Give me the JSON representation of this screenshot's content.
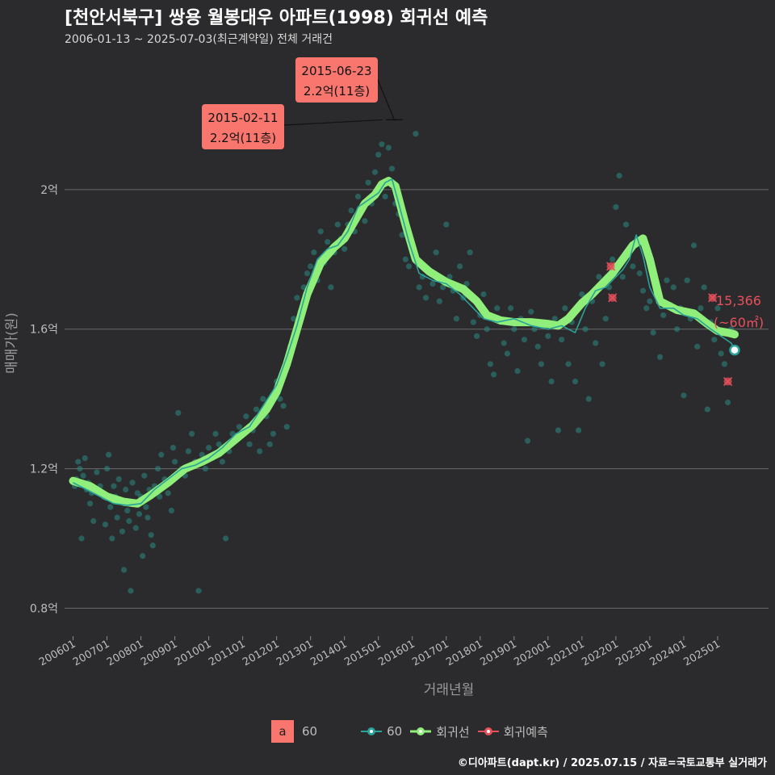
{
  "title": "[천안서북구] 쌍용 월봉대우 아파트(1998) 회귀선 예측",
  "subtitle": "2006-01-13 ~ 2025-07-03(최근계약일) 전체 거래건",
  "caption": "©디아파트(dapt.kr) / 2025.07.15 / 자료=국토교통부 실거래가",
  "colors": {
    "background": "#2b2b2d",
    "grid": "#6a6a6a",
    "points": "#2a8a83",
    "area_line": "#2aa39a",
    "regression": "#90ee7a",
    "forecast": "#e8505b",
    "label_fill": "#f8766d"
  },
  "legend": {
    "label_key": "a",
    "label_text": "60",
    "area": "60",
    "regression": "회귀선",
    "forecast": "회귀예측"
  },
  "chart_data": {
    "type": "scatter",
    "xlabel": "거래년월",
    "ylabel": "매매가(원)",
    "xlim": [
      2005.75,
      2026.5
    ],
    "ylim": [
      0.72,
      2.4
    ],
    "x_ticks": [
      "200601",
      "200701",
      "200801",
      "200901",
      "201001",
      "201101",
      "201201",
      "201301",
      "201401",
      "201501",
      "201601",
      "201701",
      "201801",
      "201901",
      "202001",
      "202101",
      "202201",
      "202301",
      "202401",
      "202501"
    ],
    "y_ticks": [
      {
        "value": 0.8,
        "label": "0.8억"
      },
      {
        "value": 1.2,
        "label": "1.2억"
      },
      {
        "value": 1.6,
        "label": "1.6억"
      },
      {
        "value": 2.0,
        "label": "2억"
      }
    ],
    "regression": {
      "name": "회귀선",
      "x": [
        2006.0,
        2006.5,
        2007.0,
        2007.5,
        2007.9,
        2008.3,
        2008.8,
        2009.3,
        2009.8,
        2010.3,
        2010.8,
        2011.3,
        2011.7,
        2012.0,
        2012.3,
        2012.6,
        2012.9,
        2013.3,
        2013.7,
        2014.0,
        2014.3,
        2014.6,
        2014.9,
        2015.1,
        2015.3,
        2015.5,
        2015.8,
        2016.1,
        2016.5,
        2017.0,
        2017.5,
        2017.9,
        2018.2,
        2018.6,
        2019.0,
        2019.5,
        2020.0,
        2020.3,
        2020.6,
        2021.0,
        2021.3,
        2021.6,
        2021.9,
        2022.2,
        2022.5,
        2022.8,
        2023.0,
        2023.3,
        2023.8,
        2024.3,
        2024.7,
        2025.0,
        2025.3,
        2025.5
      ],
      "y": [
        1.165,
        1.15,
        1.12,
        1.105,
        1.1,
        1.125,
        1.16,
        1.2,
        1.22,
        1.245,
        1.285,
        1.325,
        1.37,
        1.42,
        1.5,
        1.6,
        1.7,
        1.79,
        1.835,
        1.86,
        1.91,
        1.96,
        1.985,
        2.015,
        2.025,
        2.01,
        1.9,
        1.8,
        1.765,
        1.735,
        1.715,
        1.68,
        1.64,
        1.625,
        1.62,
        1.62,
        1.615,
        1.61,
        1.63,
        1.675,
        1.7,
        1.73,
        1.76,
        1.8,
        1.84,
        1.86,
        1.8,
        1.68,
        1.655,
        1.645,
        1.615,
        1.595,
        1.59,
        1.585
      ]
    },
    "area_series": {
      "name": "60",
      "x": [
        2006.0,
        2006.4,
        2006.8,
        2007.2,
        2007.6,
        2008.0,
        2008.4,
        2008.8,
        2009.2,
        2009.6,
        2010.0,
        2010.4,
        2010.8,
        2011.2,
        2011.6,
        2012.0,
        2012.3,
        2012.6,
        2012.9,
        2013.2,
        2013.5,
        2013.8,
        2014.1,
        2014.4,
        2014.7,
        2015.0,
        2015.2,
        2015.4,
        2015.6,
        2015.9,
        2016.2,
        2016.6,
        2017.0,
        2017.4,
        2017.8,
        2018.1,
        2018.5,
        2019.0,
        2019.5,
        2020.0,
        2020.4,
        2020.8,
        2021.1,
        2021.4,
        2021.7,
        2022.0,
        2022.2,
        2022.4,
        2022.6,
        2022.8,
        2023.0,
        2023.3,
        2023.7,
        2024.0,
        2024.4,
        2024.8,
        2025.1,
        2025.4,
        2025.5
      ],
      "y": [
        1.16,
        1.14,
        1.12,
        1.1,
        1.095,
        1.1,
        1.14,
        1.17,
        1.2,
        1.21,
        1.23,
        1.26,
        1.3,
        1.32,
        1.38,
        1.44,
        1.52,
        1.61,
        1.72,
        1.8,
        1.83,
        1.84,
        1.88,
        1.95,
        1.97,
        1.99,
        2.02,
        2.03,
        1.96,
        1.85,
        1.76,
        1.74,
        1.73,
        1.7,
        1.66,
        1.63,
        1.62,
        1.63,
        1.61,
        1.6,
        1.61,
        1.59,
        1.66,
        1.71,
        1.72,
        1.75,
        1.77,
        1.8,
        1.87,
        1.81,
        1.72,
        1.66,
        1.66,
        1.64,
        1.63,
        1.6,
        1.58,
        1.56,
        1.54
      ]
    },
    "forecast_points": [
      {
        "x": 2021.85,
        "y": 1.78
      },
      {
        "x": 2021.9,
        "y": 1.69
      },
      {
        "x": 2024.85,
        "y": 1.69
      },
      {
        "x": 2025.3,
        "y": 1.45
      }
    ],
    "last_point": {
      "x": 2025.5,
      "y": 1.54
    },
    "end_label_value": "15,366",
    "end_label_area": "(~60㎡)",
    "annotations": [
      {
        "date": "2015-06-23",
        "price": "2.2억(11층)",
        "x": 2015.47,
        "y": 2.2
      },
      {
        "date": "2015-02-11",
        "price": "2.2억(11층)",
        "x": 2015.11,
        "y": 2.2
      }
    ],
    "points": [
      [
        2006.05,
        1.15
      ],
      [
        2006.1,
        1.17
      ],
      [
        2006.15,
        1.22
      ],
      [
        2006.2,
        1.2
      ],
      [
        2006.25,
        1.0
      ],
      [
        2006.3,
        1.18
      ],
      [
        2006.35,
        1.23
      ],
      [
        2006.4,
        1.14
      ],
      [
        2006.45,
        1.16
      ],
      [
        2006.5,
        1.1
      ],
      [
        2006.55,
        1.13
      ],
      [
        2006.6,
        1.05
      ],
      [
        2006.7,
        1.19
      ],
      [
        2006.8,
        1.15
      ],
      [
        2006.9,
        1.12
      ],
      [
        2006.95,
        1.04
      ],
      [
        2007.0,
        1.2
      ],
      [
        2007.05,
        1.24
      ],
      [
        2007.1,
        1.09
      ],
      [
        2007.15,
        1.0
      ],
      [
        2007.2,
        1.15
      ],
      [
        2007.25,
        1.12
      ],
      [
        2007.3,
        1.06
      ],
      [
        2007.35,
        1.17
      ],
      [
        2007.4,
        1.11
      ],
      [
        2007.45,
        1.02
      ],
      [
        2007.5,
        0.91
      ],
      [
        2007.55,
        1.14
      ],
      [
        2007.6,
        1.08
      ],
      [
        2007.65,
        1.05
      ],
      [
        2007.7,
        0.85
      ],
      [
        2007.75,
        1.16
      ],
      [
        2007.8,
        1.1
      ],
      [
        2007.85,
        1.03
      ],
      [
        2007.9,
        1.13
      ],
      [
        2007.95,
        1.07
      ],
      [
        2008.0,
        1.12
      ],
      [
        2008.05,
        0.95
      ],
      [
        2008.1,
        1.18
      ],
      [
        2008.15,
        1.09
      ],
      [
        2008.2,
        1.06
      ],
      [
        2008.25,
        1.14
      ],
      [
        2008.3,
        1.01
      ],
      [
        2008.35,
        0.98
      ],
      [
        2008.4,
        1.15
      ],
      [
        2008.5,
        1.2
      ],
      [
        2008.55,
        1.12
      ],
      [
        2008.6,
        1.24
      ],
      [
        2008.7,
        1.17
      ],
      [
        2008.8,
        1.13
      ],
      [
        2008.9,
        1.08
      ],
      [
        2008.95,
        1.26
      ],
      [
        2009.0,
        1.22
      ],
      [
        2009.1,
        1.36
      ],
      [
        2009.2,
        1.2
      ],
      [
        2009.3,
        1.18
      ],
      [
        2009.4,
        1.25
      ],
      [
        2009.5,
        1.3
      ],
      [
        2009.6,
        1.22
      ],
      [
        2009.7,
        0.85
      ],
      [
        2009.8,
        1.24
      ],
      [
        2009.9,
        1.2
      ],
      [
        2010.0,
        1.26
      ],
      [
        2010.1,
        1.23
      ],
      [
        2010.2,
        1.3
      ],
      [
        2010.3,
        1.27
      ],
      [
        2010.4,
        1.22
      ],
      [
        2010.5,
        1.0
      ],
      [
        2010.6,
        1.25
      ],
      [
        2010.7,
        1.3
      ],
      [
        2010.8,
        1.28
      ],
      [
        2010.9,
        1.32
      ],
      [
        2011.0,
        1.3
      ],
      [
        2011.1,
        1.35
      ],
      [
        2011.2,
        1.27
      ],
      [
        2011.3,
        1.31
      ],
      [
        2011.4,
        1.37
      ],
      [
        2011.5,
        1.25
      ],
      [
        2011.6,
        1.4
      ],
      [
        2011.7,
        1.35
      ],
      [
        2011.8,
        1.27
      ],
      [
        2011.9,
        1.3
      ],
      [
        2012.0,
        1.45
      ],
      [
        2012.1,
        1.4
      ],
      [
        2012.2,
        1.38
      ],
      [
        2012.3,
        1.32
      ],
      [
        2012.4,
        1.55
      ],
      [
        2012.5,
        1.63
      ],
      [
        2012.6,
        1.69
      ],
      [
        2012.7,
        1.65
      ],
      [
        2012.8,
        1.72
      ],
      [
        2012.9,
        1.76
      ],
      [
        2013.0,
        1.78
      ],
      [
        2013.1,
        1.82
      ],
      [
        2013.2,
        1.74
      ],
      [
        2013.3,
        1.88
      ],
      [
        2013.4,
        1.79
      ],
      [
        2013.5,
        1.85
      ],
      [
        2013.6,
        1.72
      ],
      [
        2013.7,
        1.82
      ],
      [
        2013.8,
        1.9
      ],
      [
        2013.9,
        1.86
      ],
      [
        2014.0,
        1.83
      ],
      [
        2014.1,
        1.9
      ],
      [
        2014.2,
        1.94
      ],
      [
        2014.3,
        1.88
      ],
      [
        2014.4,
        1.98
      ],
      [
        2014.5,
        1.95
      ],
      [
        2014.6,
        1.91
      ],
      [
        2014.7,
        2.02
      ],
      [
        2014.8,
        1.96
      ],
      [
        2014.9,
        2.05
      ],
      [
        2015.0,
        2.1
      ],
      [
        2015.05,
        2.0
      ],
      [
        2015.1,
        2.13
      ],
      [
        2015.2,
        1.98
      ],
      [
        2015.3,
        2.12
      ],
      [
        2015.4,
        2.06
      ],
      [
        2015.5,
        1.96
      ],
      [
        2015.6,
        1.93
      ],
      [
        2015.7,
        1.87
      ],
      [
        2015.8,
        1.8
      ],
      [
        2015.9,
        1.78
      ],
      [
        2016.0,
        1.82
      ],
      [
        2016.1,
        2.16
      ],
      [
        2016.2,
        1.72
      ],
      [
        2016.3,
        1.75
      ],
      [
        2016.4,
        1.69
      ],
      [
        2016.5,
        1.77
      ],
      [
        2016.6,
        1.73
      ],
      [
        2016.7,
        1.82
      ],
      [
        2016.8,
        1.68
      ],
      [
        2016.9,
        1.72
      ],
      [
        2017.0,
        1.9
      ],
      [
        2017.1,
        1.75
      ],
      [
        2017.2,
        1.71
      ],
      [
        2017.3,
        1.63
      ],
      [
        2017.4,
        1.78
      ],
      [
        2017.5,
        1.69
      ],
      [
        2017.6,
        1.73
      ],
      [
        2017.7,
        1.82
      ],
      [
        2017.8,
        1.62
      ],
      [
        2017.9,
        1.58
      ],
      [
        2018.0,
        1.64
      ],
      [
        2018.1,
        1.7
      ],
      [
        2018.2,
        1.6
      ],
      [
        2018.3,
        1.5
      ],
      [
        2018.4,
        1.47
      ],
      [
        2018.5,
        1.66
      ],
      [
        2018.6,
        1.62
      ],
      [
        2018.7,
        1.56
      ],
      [
        2018.8,
        1.53
      ],
      [
        2018.9,
        1.66
      ],
      [
        2019.0,
        1.6
      ],
      [
        2019.1,
        1.48
      ],
      [
        2019.2,
        1.63
      ],
      [
        2019.3,
        1.57
      ],
      [
        2019.4,
        1.28
      ],
      [
        2019.5,
        1.65
      ],
      [
        2019.6,
        1.6
      ],
      [
        2019.7,
        1.55
      ],
      [
        2019.8,
        1.5
      ],
      [
        2019.9,
        1.62
      ],
      [
        2020.0,
        1.58
      ],
      [
        2020.1,
        1.45
      ],
      [
        2020.2,
        1.63
      ],
      [
        2020.3,
        1.31
      ],
      [
        2020.4,
        1.57
      ],
      [
        2020.5,
        1.66
      ],
      [
        2020.6,
        1.5
      ],
      [
        2020.7,
        1.62
      ],
      [
        2020.8,
        1.45
      ],
      [
        2020.9,
        1.31
      ],
      [
        2021.0,
        1.7
      ],
      [
        2021.1,
        1.6
      ],
      [
        2021.2,
        1.4
      ],
      [
        2021.3,
        1.68
      ],
      [
        2021.4,
        1.56
      ],
      [
        2021.5,
        1.75
      ],
      [
        2021.6,
        1.5
      ],
      [
        2021.7,
        1.63
      ],
      [
        2021.8,
        1.72
      ],
      [
        2021.9,
        1.8
      ],
      [
        2022.0,
        1.95
      ],
      [
        2022.1,
        2.04
      ],
      [
        2022.2,
        1.75
      ],
      [
        2022.3,
        1.9
      ],
      [
        2022.4,
        1.82
      ],
      [
        2022.5,
        1.78
      ],
      [
        2022.6,
        1.85
      ],
      [
        2022.7,
        1.76
      ],
      [
        2022.8,
        1.71
      ],
      [
        2022.9,
        1.66
      ],
      [
        2023.0,
        1.68
      ],
      [
        2023.1,
        1.59
      ],
      [
        2023.2,
        1.7
      ],
      [
        2023.3,
        1.52
      ],
      [
        2023.4,
        1.64
      ],
      [
        2023.5,
        1.74
      ],
      [
        2023.6,
        1.67
      ],
      [
        2023.7,
        1.72
      ],
      [
        2023.8,
        1.6
      ],
      [
        2023.9,
        1.66
      ],
      [
        2024.0,
        1.41
      ],
      [
        2024.1,
        1.74
      ],
      [
        2024.2,
        1.63
      ],
      [
        2024.3,
        1.84
      ],
      [
        2024.4,
        1.55
      ],
      [
        2024.5,
        1.66
      ],
      [
        2024.6,
        1.72
      ],
      [
        2024.7,
        1.37
      ],
      [
        2024.8,
        1.62
      ],
      [
        2024.9,
        1.57
      ],
      [
        2025.0,
        1.66
      ],
      [
        2025.1,
        1.53
      ],
      [
        2025.2,
        1.5
      ],
      [
        2025.3,
        1.39
      ],
      [
        2025.4,
        1.6
      ]
    ]
  }
}
